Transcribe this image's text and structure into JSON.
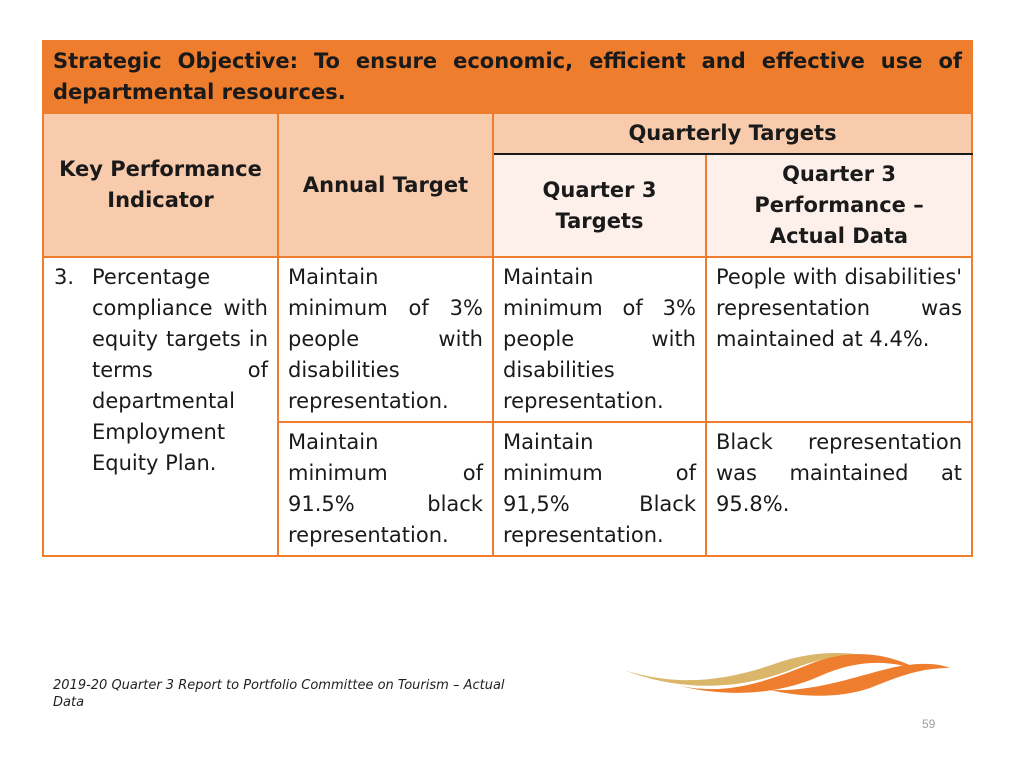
{
  "objective": "Strategic Objective: To ensure economic, efficient and effective use of departmental resources.",
  "headers": {
    "kpi": "Key Performance Indicator",
    "annual": "Annual Target",
    "quarterly": "Quarterly Targets",
    "q3_targets": "Quarter 3 Targets",
    "q3_actual": "Quarter 3 Performance – Actual Data"
  },
  "kpi": {
    "number": "3.",
    "text": "Percentage compliance with equity targets in terms of departmental Employment Equity Plan."
  },
  "rows": [
    {
      "annual": "Maintain minimum of 3% people with disabilities representation.",
      "q3_target": "Maintain minimum of 3% people with disabilities representation.",
      "actual": "People with disabilities' representation was maintained at 4.4%."
    },
    {
      "annual": "Maintain minimum of 91.5% black representation.",
      "q3_target": "Maintain minimum of 91,5% Black representation.",
      "actual": "Black representation was maintained at 95.8%."
    }
  ],
  "footer": "2019-20 Quarter 3 Report to Portfolio Committee on Tourism  – Actual Data",
  "page_number": "59",
  "colors": {
    "accent": "#ef7d2e",
    "header_fill": "#f8cbad",
    "subheader_fill": "#fdf0ea",
    "logo_gold": "#d9b66a"
  }
}
